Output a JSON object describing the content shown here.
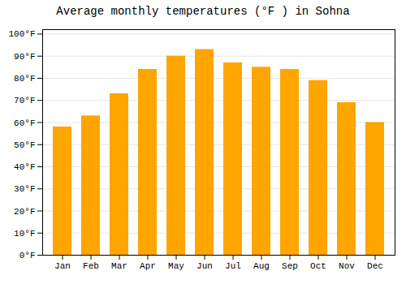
{
  "chart_data": {
    "type": "bar",
    "title": "Average monthly temperatures (°F ) in Sohna",
    "categories": [
      "Jan",
      "Feb",
      "Mar",
      "Apr",
      "May",
      "Jun",
      "Jul",
      "Aug",
      "Sep",
      "Oct",
      "Nov",
      "Dec"
    ],
    "values": [
      58,
      63,
      73,
      84,
      90,
      93,
      87,
      85,
      84,
      79,
      69,
      60
    ],
    "color": "#FFA500",
    "ylim": [
      0,
      102
    ],
    "yticks": [
      {
        "value": 0,
        "label": "0°F"
      },
      {
        "value": 10,
        "label": "10°F"
      },
      {
        "value": 20,
        "label": "20°F"
      },
      {
        "value": 30,
        "label": "30°F"
      },
      {
        "value": 40,
        "label": "40°F"
      },
      {
        "value": 50,
        "label": "50°F"
      },
      {
        "value": 60,
        "label": "60°F"
      },
      {
        "value": 70,
        "label": "70°F"
      },
      {
        "value": 80,
        "label": "80°F"
      },
      {
        "value": 90,
        "label": "90°F"
      },
      {
        "value": 100,
        "label": "100°F"
      }
    ],
    "grid": true
  }
}
